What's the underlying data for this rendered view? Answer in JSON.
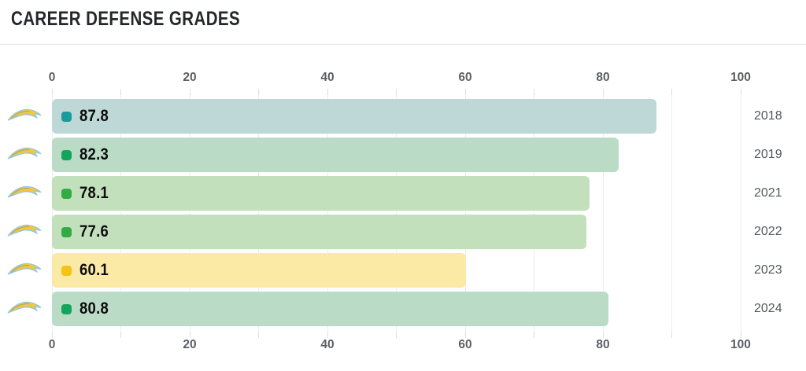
{
  "title": "CAREER DEFENSE GRADES",
  "chart_data": {
    "type": "bar",
    "orientation": "horizontal",
    "title": "CAREER DEFENSE GRADES",
    "categories": [
      "2018",
      "2019",
      "2021",
      "2022",
      "2023",
      "2024"
    ],
    "values": [
      87.8,
      82.3,
      78.1,
      77.6,
      60.1,
      80.8
    ],
    "value_labels": [
      "87.8",
      "82.3",
      "78.1",
      "77.6",
      "60.1",
      "80.8"
    ],
    "xlim": [
      0,
      100
    ],
    "x_ticks": [
      0,
      20,
      40,
      60,
      80,
      100
    ],
    "x_tick_labels": [
      "0",
      "20",
      "40",
      "60",
      "80",
      "100"
    ],
    "minor_tick_step": 10,
    "grid": true,
    "axes": [
      "top",
      "bottom"
    ],
    "legend": "none",
    "rows": [
      {
        "year": "2018",
        "value": 87.8,
        "label": "87.8",
        "bar_color": "#bdd8d6",
        "marker_color": "#1b9a99"
      },
      {
        "year": "2019",
        "value": 82.3,
        "label": "82.3",
        "bar_color": "#badcc7",
        "marker_color": "#15a45c"
      },
      {
        "year": "2021",
        "value": 78.1,
        "label": "78.1",
        "bar_color": "#c3e0bc",
        "marker_color": "#32ab43"
      },
      {
        "year": "2022",
        "value": 77.6,
        "label": "77.6",
        "bar_color": "#c3e0bc",
        "marker_color": "#32ab43"
      },
      {
        "year": "2023",
        "value": 60.1,
        "label": "60.1",
        "bar_color": "#fbeaa6",
        "marker_color": "#f4c316"
      },
      {
        "year": "2024",
        "value": 80.8,
        "label": "80.8",
        "bar_color": "#badcc7",
        "marker_color": "#15a45c"
      }
    ],
    "row_icon": "chargers-bolt-icon",
    "logo_colors": {
      "bolt_fill": "#efc83f",
      "bolt_outline": "#8fc6e9",
      "bolt_accent": "#3c6cae"
    },
    "style_colors": {
      "gridline": "#ececec",
      "tick": "#dedede",
      "axis_label": "#5b5f64",
      "year_label": "#53575c",
      "value_label": "#0d0d0d",
      "title": "#24282c",
      "divider": "#e7e7e7",
      "background": "#ffffff"
    }
  }
}
